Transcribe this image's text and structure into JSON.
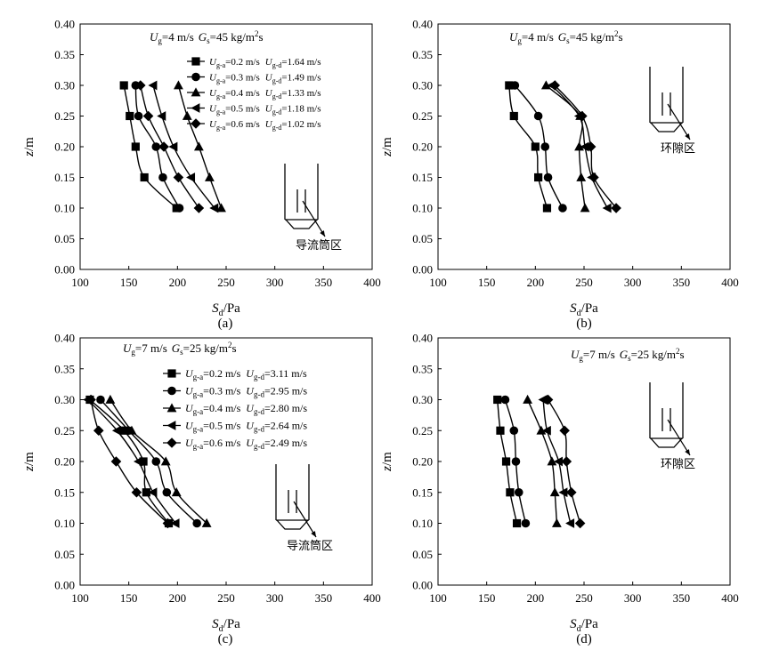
{
  "figure": {
    "x_axis_label": "S",
    "x_axis_label_sub": "d",
    "x_axis_label_unit": "/Pa",
    "y_axis_label": "z",
    "y_axis_label_unit": "/m"
  },
  "chart_data": [
    {
      "type": "line",
      "panel_label": "(a)",
      "condition": {
        "ug_sym": "U",
        "ug_sub": "g",
        "ug_val": "=4 m/s",
        "gs_sym": "G",
        "gs_sub": "s",
        "gs_val": "=45 kg/m",
        "gs_exp": "2",
        "gs_tail": "s"
      },
      "region_label": "导流筒区",
      "legend_style": "short",
      "xlim": [
        100,
        400
      ],
      "ylim": [
        0,
        0.4
      ],
      "xticks": [
        "100",
        "150",
        "200",
        "250",
        "300",
        "350",
        "400"
      ],
      "yticks": [
        "0.00",
        "0.05",
        "0.10",
        "0.15",
        "0.20",
        "0.25",
        "0.30",
        "0.35",
        "0.40"
      ],
      "z": [
        0.3,
        0.25,
        0.2,
        0.15,
        0.1
      ],
      "series": [
        {
          "name": "Ug-a=0.2 m/s Ug-d=1.64 m/s",
          "ua": "=0.2 m/s",
          "ud": "=1.64 m/s",
          "marker": "square",
          "values": [
            145,
            151,
            157,
            166,
            199
          ]
        },
        {
          "name": "Ug-a=0.3 m/s Ug-d=1.49 m/s",
          "ua": "=0.3 m/s",
          "ud": "=1.49 m/s",
          "marker": "circle",
          "values": [
            157,
            160,
            178,
            185,
            202
          ]
        },
        {
          "name": "Ug-a=0.4 m/s Ug-d=1.33 m/s",
          "ua": "=0.4 m/s",
          "ud": "=1.33 m/s",
          "marker": "triangle-up",
          "values": [
            201,
            210,
            222,
            233,
            245
          ]
        },
        {
          "name": "Ug-a=0.5 m/s Ug-d=1.18 m/s",
          "ua": "=0.5 m/s",
          "ud": "=1.18 m/s",
          "marker": "triangle-left",
          "values": [
            175,
            184,
            196,
            214,
            238
          ]
        },
        {
          "name": "Ug-a=0.6 m/s Ug-d=1.02 m/s",
          "ua": "=0.6 m/s",
          "ud": "=1.02 m/s",
          "marker": "diamond",
          "values": [
            162,
            170,
            186,
            201,
            222
          ]
        }
      ]
    },
    {
      "type": "line",
      "panel_label": "(b)",
      "condition": {
        "ug_sym": "U",
        "ug_sub": "g",
        "ug_val": "=4 m/s",
        "gs_sym": "G",
        "gs_sub": "s",
        "gs_val": "=45 kg/m",
        "gs_exp": "2",
        "gs_tail": "s"
      },
      "region_label": "环隙区",
      "legend_style": "none",
      "xlim": [
        100,
        400
      ],
      "ylim": [
        0,
        0.4
      ],
      "xticks": [
        "100",
        "150",
        "200",
        "250",
        "300",
        "350",
        "400"
      ],
      "yticks": [
        "0.00",
        "0.05",
        "0.10",
        "0.15",
        "0.20",
        "0.25",
        "0.30",
        "0.35",
        "0.40"
      ],
      "z": [
        0.3,
        0.25,
        0.2,
        0.15,
        0.1
      ],
      "series": [
        {
          "name": "Ug-a=0.2 m/s",
          "marker": "square",
          "values": [
            173,
            178,
            200,
            203,
            212
          ]
        },
        {
          "name": "Ug-a=0.3 m/s",
          "marker": "circle",
          "values": [
            179,
            203,
            210,
            213,
            228
          ]
        },
        {
          "name": "Ug-a=0.4 m/s",
          "marker": "triangle-up",
          "values": [
            211,
            246,
            245,
            247,
            251
          ]
        },
        {
          "name": "Ug-a=0.5 m/s",
          "marker": "triangle-left",
          "values": [
            217,
            245,
            251,
            258,
            274
          ]
        },
        {
          "name": "Ug-a=0.6 m/s",
          "marker": "diamond",
          "values": [
            220,
            248,
            257,
            260,
            283
          ]
        }
      ]
    },
    {
      "type": "line",
      "panel_label": "(c)",
      "condition": {
        "ug_sym": "U",
        "ug_sub": "g",
        "ug_val": "=7 m/s",
        "gs_sym": "G",
        "gs_sub": "s",
        "gs_val": "=25 kg/m",
        "gs_exp": "2",
        "gs_tail": "s"
      },
      "region_label": "导流筒区",
      "legend_style": "full",
      "xlim": [
        100,
        400
      ],
      "ylim": [
        0,
        0.4
      ],
      "xticks": [
        "100",
        "150",
        "200",
        "250",
        "300",
        "350",
        "400"
      ],
      "yticks": [
        "0.00",
        "0.05",
        "0.10",
        "0.15",
        "0.20",
        "0.25",
        "0.30",
        "0.35",
        "0.40"
      ],
      "z": [
        0.3,
        0.25,
        0.2,
        0.15,
        0.1
      ],
      "series": [
        {
          "name": "Ug-a=0.2 m/s Ug-d=3.11 m/s",
          "ua": "=0.2 m/s",
          "ud": "=3.11 m/s",
          "marker": "square",
          "values": [
            110,
            145,
            165,
            168,
            191
          ]
        },
        {
          "name": "Ug-a=0.3 m/s Ug-d=2.95 m/s",
          "ua": "=0.3 m/s",
          "ud": "=2.95 m/s",
          "marker": "circle",
          "values": [
            121,
            150,
            178,
            189,
            220
          ]
        },
        {
          "name": "Ug-a=0.4 m/s Ug-d=2.80 m/s",
          "ua": "=0.4 m/s",
          "ud": "=2.80 m/s",
          "marker": "triangle-up",
          "values": [
            131,
            153,
            188,
            199,
            230
          ]
        },
        {
          "name": "Ug-a=0.5 m/s Ug-d=2.64 m/s",
          "ua": "=0.5 m/s",
          "ud": "=2.64 m/s",
          "marker": "triangle-left",
          "values": [
            108,
            138,
            160,
            175,
            198
          ]
        },
        {
          "name": "Ug-a=0.6 m/s Ug-d=2.49 m/s",
          "ua": "=0.6 m/s",
          "ud": "=2.49 m/s",
          "marker": "diamond",
          "values": [
            111,
            119,
            137,
            158,
            190
          ]
        }
      ]
    },
    {
      "type": "line",
      "panel_label": "(d)",
      "condition": {
        "ug_sym": "U",
        "ug_sub": "g",
        "ug_val": "=7 m/s",
        "gs_sym": "G",
        "gs_sub": "s",
        "gs_val": "=25 kg/m",
        "gs_exp": "2",
        "gs_tail": "s"
      },
      "region_label": "环隙区",
      "legend_style": "none",
      "xlim": [
        100,
        400
      ],
      "ylim": [
        0,
        0.4
      ],
      "xticks": [
        "100",
        "150",
        "200",
        "250",
        "300",
        "350",
        "400"
      ],
      "yticks": [
        "0.00",
        "0.05",
        "0.10",
        "0.15",
        "0.20",
        "0.25",
        "0.30",
        "0.35",
        "0.40"
      ],
      "z": [
        0.3,
        0.25,
        0.2,
        0.15,
        0.1
      ],
      "series": [
        {
          "name": "Ug-a=0.2 m/s",
          "marker": "square",
          "values": [
            161,
            164,
            170,
            174,
            181
          ]
        },
        {
          "name": "Ug-a=0.3 m/s",
          "marker": "circle",
          "values": [
            169,
            178,
            180,
            183,
            190
          ]
        },
        {
          "name": "Ug-a=0.4 m/s",
          "marker": "triangle-up",
          "values": [
            192,
            206,
            217,
            220,
            222
          ]
        },
        {
          "name": "Ug-a=0.5 m/s",
          "marker": "triangle-left",
          "values": [
            208,
            212,
            224,
            229,
            236
          ]
        },
        {
          "name": "Ug-a=0.6 m/s",
          "marker": "diamond",
          "values": [
            213,
            230,
            232,
            237,
            246
          ]
        }
      ]
    }
  ]
}
